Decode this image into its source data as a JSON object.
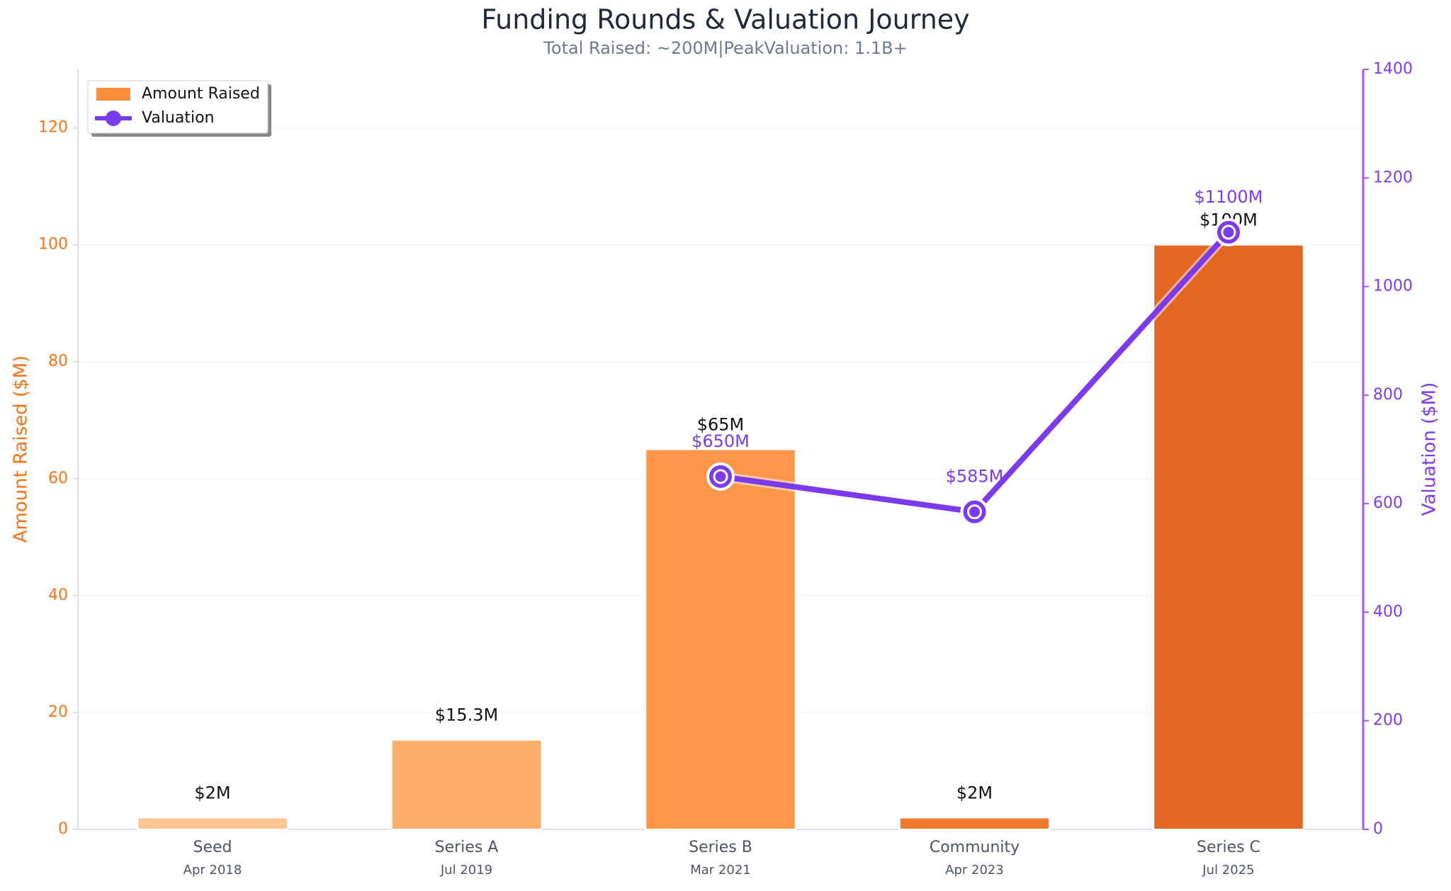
{
  "chart_data": {
    "type": "bar_line",
    "title": "Funding Rounds & Valuation Journey",
    "subtitle": "Total Raised: ~200M|PeakValuation: 1.1B+",
    "categories": [
      "Seed",
      "Series A",
      "Series B",
      "Community",
      "Series C"
    ],
    "dates": [
      "Apr 2018",
      "Jul 2019",
      "Mar 2021",
      "Apr 2023",
      "Jul 2025"
    ],
    "ylabel": "Amount Raised ($M)",
    "y2label": "Valuation ($M)",
    "ylim": [
      0,
      130
    ],
    "yticks": [
      0,
      20,
      40,
      60,
      80,
      100,
      120
    ],
    "y2lim": [
      0,
      1400
    ],
    "y2ticks": [
      0,
      200,
      400,
      600,
      800,
      1000,
      1200,
      1400
    ],
    "legend": "upper left",
    "series": [
      {
        "name": "Amount Raised",
        "type": "bar",
        "color": "#fd8d3c",
        "colors": [
          "#fdc591",
          "#fdae6b",
          "#fd9648",
          "#f07a30",
          "#e36622"
        ],
        "values": [
          2,
          15.3,
          65,
          2,
          100
        ],
        "value_labels": [
          "$2M",
          "$15.3M",
          "$65M",
          "$2M",
          "$100M"
        ]
      },
      {
        "name": "Valuation",
        "type": "line",
        "axis": "y2",
        "color": "#7c3aed",
        "values": [
          null,
          null,
          650,
          585,
          1100
        ],
        "value_labels": [
          null,
          null,
          "$650M",
          "$585M",
          "$1100M"
        ]
      }
    ]
  }
}
